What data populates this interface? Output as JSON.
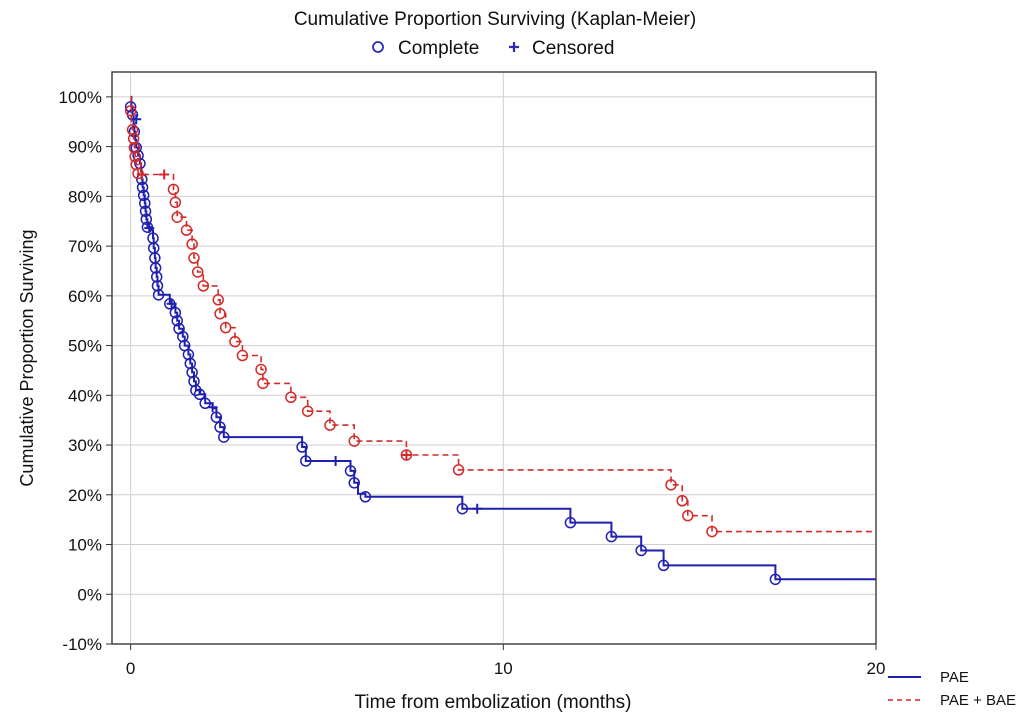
{
  "chart_data": {
    "type": "line",
    "title": "Cumulative Proportion Surviving (Kaplan-Meier)",
    "xlabel": "Time from embolization (months)",
    "ylabel": "Cumulative Proportion Surviving",
    "xlim": [
      -0.5,
      20
    ],
    "ylim": [
      -10,
      105
    ],
    "x_ticks": [
      0,
      10,
      20
    ],
    "x_tick_labels": [
      "0",
      "10",
      "20"
    ],
    "y_ticks": [
      -10,
      0,
      10,
      20,
      30,
      40,
      50,
      60,
      70,
      80,
      90,
      100
    ],
    "y_tick_labels": [
      "-10%",
      "0%",
      "10%",
      "20%",
      "30%",
      "40%",
      "50%",
      "60%",
      "70%",
      "80%",
      "90%",
      "100%"
    ],
    "grid": "major gridlines on",
    "marker_legend": [
      {
        "label": "Complete",
        "marker": "open-circle",
        "color": "#2a2ab8"
      },
      {
        "label": "Censored",
        "marker": "plus",
        "color": "#2a2ab8"
      }
    ],
    "legend_position": "top-center (markers), bottom-right (series)",
    "series": [
      {
        "name": "PAE",
        "color": "#2020b0",
        "line_style": "solid",
        "points": [
          [
            0,
            100
          ],
          [
            0.02,
            98
          ],
          [
            0.05,
            96.4
          ],
          [
            0.08,
            94.6
          ],
          [
            0.1,
            93
          ],
          [
            0.12,
            91.4
          ],
          [
            0.15,
            89.8
          ],
          [
            0.2,
            88.2
          ],
          [
            0.25,
            86.6
          ],
          [
            0.28,
            85
          ],
          [
            0.3,
            83.4
          ],
          [
            0.32,
            81.8
          ],
          [
            0.35,
            80.2
          ],
          [
            0.38,
            78.6
          ],
          [
            0.4,
            77
          ],
          [
            0.42,
            75.4
          ],
          [
            0.45,
            73.8
          ],
          [
            0.55,
            73.2
          ],
          [
            0.6,
            71.6
          ],
          [
            0.62,
            69.6
          ],
          [
            0.65,
            67.6
          ],
          [
            0.67,
            65.6
          ],
          [
            0.7,
            63.8
          ],
          [
            0.72,
            62
          ],
          [
            0.75,
            60.2
          ],
          [
            1.05,
            58.4
          ],
          [
            1.2,
            56.6
          ],
          [
            1.25,
            55
          ],
          [
            1.3,
            53.4
          ],
          [
            1.4,
            51.8
          ],
          [
            1.45,
            50
          ],
          [
            1.55,
            48.2
          ],
          [
            1.6,
            46.4
          ],
          [
            1.65,
            44.6
          ],
          [
            1.7,
            42.8
          ],
          [
            1.75,
            41
          ],
          [
            1.85,
            40.2
          ],
          [
            2.0,
            38.4
          ],
          [
            2.2,
            37.4
          ],
          [
            2.3,
            35.6
          ],
          [
            2.4,
            33.6
          ],
          [
            2.5,
            31.6
          ],
          [
            4.6,
            29.6
          ],
          [
            4.7,
            26.8
          ],
          [
            5.9,
            24.8
          ],
          [
            6.0,
            22.4
          ],
          [
            6.1,
            20.2
          ],
          [
            6.3,
            19.6
          ],
          [
            8.9,
            17.2
          ],
          [
            11.8,
            14.4
          ],
          [
            12.9,
            11.6
          ],
          [
            13.7,
            8.8
          ],
          [
            14.3,
            5.8
          ],
          [
            17.3,
            3.0
          ],
          [
            20,
            3.0
          ]
        ],
        "events": [
          {
            "t": 0.0,
            "s": 98.0
          },
          {
            "t": 0.05,
            "s": 96.4
          },
          {
            "t": 0.1,
            "s": 93.0
          },
          {
            "t": 0.15,
            "s": 89.8
          },
          {
            "t": 0.2,
            "s": 88.2
          },
          {
            "t": 0.25,
            "s": 86.6
          },
          {
            "t": 0.3,
            "s": 83.4
          },
          {
            "t": 0.32,
            "s": 81.8
          },
          {
            "t": 0.35,
            "s": 80.2
          },
          {
            "t": 0.38,
            "s": 78.6
          },
          {
            "t": 0.4,
            "s": 77.0
          },
          {
            "t": 0.42,
            "s": 75.4
          },
          {
            "t": 0.45,
            "s": 73.8
          },
          {
            "t": 0.6,
            "s": 71.6
          },
          {
            "t": 0.62,
            "s": 69.6
          },
          {
            "t": 0.65,
            "s": 67.6
          },
          {
            "t": 0.67,
            "s": 65.6
          },
          {
            "t": 0.7,
            "s": 63.8
          },
          {
            "t": 0.72,
            "s": 62.0
          },
          {
            "t": 0.75,
            "s": 60.2
          },
          {
            "t": 1.05,
            "s": 58.4
          },
          {
            "t": 1.2,
            "s": 56.6
          },
          {
            "t": 1.25,
            "s": 55.0
          },
          {
            "t": 1.3,
            "s": 53.4
          },
          {
            "t": 1.4,
            "s": 51.8
          },
          {
            "t": 1.45,
            "s": 50.0
          },
          {
            "t": 1.55,
            "s": 48.2
          },
          {
            "t": 1.6,
            "s": 46.4
          },
          {
            "t": 1.65,
            "s": 44.6
          },
          {
            "t": 1.7,
            "s": 42.8
          },
          {
            "t": 1.75,
            "s": 41.0
          },
          {
            "t": 1.85,
            "s": 40.2
          },
          {
            "t": 2.0,
            "s": 38.4
          },
          {
            "t": 2.3,
            "s": 35.6
          },
          {
            "t": 2.4,
            "s": 33.6
          },
          {
            "t": 2.5,
            "s": 31.6
          },
          {
            "t": 4.6,
            "s": 29.6
          },
          {
            "t": 4.7,
            "s": 26.8
          },
          {
            "t": 5.9,
            "s": 24.8
          },
          {
            "t": 6.0,
            "s": 22.4
          },
          {
            "t": 6.3,
            "s": 19.6
          },
          {
            "t": 8.9,
            "s": 17.2
          },
          {
            "t": 11.8,
            "s": 14.4
          },
          {
            "t": 12.9,
            "s": 11.6
          },
          {
            "t": 13.7,
            "s": 8.8
          },
          {
            "t": 14.3,
            "s": 5.8
          },
          {
            "t": 17.3,
            "s": 3.0
          }
        ],
        "censored": [
          {
            "t": 0.15,
            "s": 95.5
          },
          {
            "t": 0.5,
            "s": 73.6
          },
          {
            "t": 1.1,
            "s": 58.4
          },
          {
            "t": 2.2,
            "s": 37.6
          },
          {
            "t": 5.5,
            "s": 26.8
          },
          {
            "t": 9.3,
            "s": 17.2
          }
        ]
      },
      {
        "name": "PAE + BAE",
        "color": "#d42a2a",
        "line_style": "dashed",
        "points": [
          [
            0,
            100
          ],
          [
            0.02,
            95
          ],
          [
            0.05,
            93.4
          ],
          [
            0.08,
            91.6
          ],
          [
            0.1,
            89.8
          ],
          [
            0.12,
            88
          ],
          [
            0.15,
            86.4
          ],
          [
            0.2,
            84.6
          ],
          [
            0.35,
            84.4
          ],
          [
            1.15,
            81.4
          ],
          [
            1.2,
            78.8
          ],
          [
            1.25,
            75.8
          ],
          [
            1.5,
            73.2
          ],
          [
            1.65,
            70.4
          ],
          [
            1.7,
            67.6
          ],
          [
            1.8,
            64.8
          ],
          [
            1.95,
            62
          ],
          [
            2.35,
            59.2
          ],
          [
            2.4,
            56.4
          ],
          [
            2.55,
            53.6
          ],
          [
            2.8,
            50.8
          ],
          [
            3.0,
            48
          ],
          [
            3.5,
            45.2
          ],
          [
            3.55,
            42.4
          ],
          [
            4.3,
            39.6
          ],
          [
            4.75,
            36.8
          ],
          [
            5.35,
            34
          ],
          [
            6.0,
            30.8
          ],
          [
            7.4,
            28
          ],
          [
            8.8,
            25
          ],
          [
            14.5,
            22
          ],
          [
            14.8,
            18.8
          ],
          [
            14.95,
            15.8
          ],
          [
            15.6,
            12.6
          ],
          [
            20,
            12.6
          ]
        ],
        "events": [
          {
            "t": 0.0,
            "s": 97.2
          },
          {
            "t": 0.05,
            "s": 93.4
          },
          {
            "t": 0.08,
            "s": 91.6
          },
          {
            "t": 0.1,
            "s": 89.8
          },
          {
            "t": 0.12,
            "s": 88.0
          },
          {
            "t": 0.15,
            "s": 86.4
          },
          {
            "t": 0.2,
            "s": 84.6
          },
          {
            "t": 1.15,
            "s": 81.4
          },
          {
            "t": 1.2,
            "s": 78.8
          },
          {
            "t": 1.25,
            "s": 75.8
          },
          {
            "t": 1.5,
            "s": 73.2
          },
          {
            "t": 1.65,
            "s": 70.4
          },
          {
            "t": 1.7,
            "s": 67.6
          },
          {
            "t": 1.8,
            "s": 64.8
          },
          {
            "t": 1.95,
            "s": 62.0
          },
          {
            "t": 2.35,
            "s": 59.2
          },
          {
            "t": 2.4,
            "s": 56.4
          },
          {
            "t": 2.55,
            "s": 53.6
          },
          {
            "t": 2.8,
            "s": 50.8
          },
          {
            "t": 3.0,
            "s": 48.0
          },
          {
            "t": 3.5,
            "s": 45.2
          },
          {
            "t": 3.55,
            "s": 42.4
          },
          {
            "t": 4.3,
            "s": 39.6
          },
          {
            "t": 4.75,
            "s": 36.8
          },
          {
            "t": 5.35,
            "s": 34.0
          },
          {
            "t": 6.0,
            "s": 30.8
          },
          {
            "t": 7.4,
            "s": 28.0
          },
          {
            "t": 8.8,
            "s": 25.0
          },
          {
            "t": 14.5,
            "s": 22.0
          },
          {
            "t": 14.8,
            "s": 18.8
          },
          {
            "t": 14.95,
            "s": 15.8
          },
          {
            "t": 15.6,
            "s": 12.6
          }
        ],
        "censored": [
          {
            "t": 0.3,
            "s": 84.4
          },
          {
            "t": 0.9,
            "s": 84.4
          },
          {
            "t": 7.4,
            "s": 28.0
          }
        ]
      }
    ]
  }
}
